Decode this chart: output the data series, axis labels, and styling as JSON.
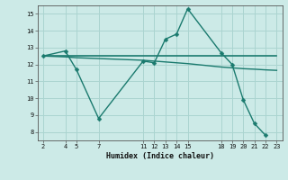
{
  "title": "",
  "xlabel": "Humidex (Indice chaleur)",
  "background_color": "#cceae7",
  "grid_color": "#aad4d0",
  "line_color": "#1a7a6e",
  "xticks": [
    2,
    4,
    5,
    7,
    11,
    12,
    13,
    14,
    15,
    18,
    19,
    20,
    21,
    22,
    23
  ],
  "yticks": [
    8,
    9,
    10,
    11,
    12,
    13,
    14,
    15
  ],
  "ylim": [
    7.5,
    15.5
  ],
  "xlim": [
    1.5,
    23.5
  ],
  "series": [
    {
      "x": [
        2,
        4,
        5,
        7,
        11,
        12,
        13,
        14,
        15,
        18,
        19,
        20,
        21,
        22
      ],
      "y": [
        12.5,
        12.8,
        11.7,
        8.8,
        12.2,
        12.1,
        13.5,
        13.8,
        15.3,
        12.7,
        12.0,
        9.9,
        8.5,
        7.8
      ],
      "marker": "D",
      "markersize": 2.5,
      "linewidth": 1.0
    },
    {
      "x": [
        2,
        4,
        5,
        7,
        11,
        12,
        13,
        14,
        15,
        18,
        19,
        20,
        21,
        22,
        23
      ],
      "y": [
        12.5,
        12.45,
        12.4,
        12.35,
        12.25,
        12.2,
        12.15,
        12.1,
        12.05,
        11.85,
        11.8,
        11.75,
        11.72,
        11.68,
        11.65
      ],
      "marker": null,
      "markersize": 0,
      "linewidth": 1.0
    },
    {
      "x": [
        2,
        23
      ],
      "y": [
        12.5,
        12.5
      ],
      "marker": null,
      "markersize": 0,
      "linewidth": 1.2
    }
  ]
}
